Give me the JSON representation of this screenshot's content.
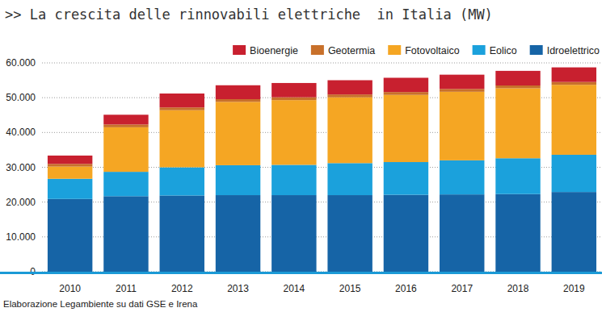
{
  "chart_data": {
    "type": "bar",
    "title": ">> La crescita delle rinnovabili elettriche  in Italia (MW)",
    "annotations": [
      "Elaborazione Legambiente su dati GSE e Irena"
    ],
    "stacked": true,
    "grid": true,
    "legend": "top-right",
    "categories": [
      "2010",
      "2011",
      "2012",
      "2013",
      "2014",
      "2015",
      "2016",
      "2017",
      "2018",
      "2019"
    ],
    "series": [
      {
        "name": "Idroelettrico",
        "color": "#1664a6",
        "values": [
          20900,
          21700,
          21900,
          22000,
          22000,
          22000,
          22100,
          22200,
          22300,
          22900
        ]
      },
      {
        "name": "Eolico",
        "color": "#1ba1dc",
        "values": [
          5800,
          7000,
          8100,
          8600,
          8700,
          9200,
          9400,
          9800,
          10300,
          10700
        ]
      },
      {
        "name": "Fotovoltaico",
        "color": "#f5a623",
        "values": [
          3500,
          12800,
          16400,
          18200,
          18600,
          18900,
          19300,
          19700,
          20100,
          20100
        ]
      },
      {
        "name": "Geotermia",
        "color": "#c8702a",
        "values": [
          770,
          800,
          800,
          770,
          820,
          820,
          820,
          810,
          810,
          810
        ]
      },
      {
        "name": "Bioenergie",
        "color": "#c8202f",
        "values": [
          2400,
          2800,
          4000,
          4000,
          4100,
          4100,
          4100,
          4100,
          4200,
          4200
        ]
      }
    ],
    "ylim": [
      0,
      60000
    ],
    "yticks": [
      0,
      {
        "value": 10000,
        "label": "10.000"
      },
      {
        "value": 20000,
        "label": "20.000"
      },
      {
        "value": 30000,
        "label": "30.000"
      },
      {
        "value": 40000,
        "label": "40.000"
      },
      {
        "value": 50000,
        "label": "50.000"
      },
      {
        "value": 60000,
        "label": "60.000"
      }
    ]
  }
}
